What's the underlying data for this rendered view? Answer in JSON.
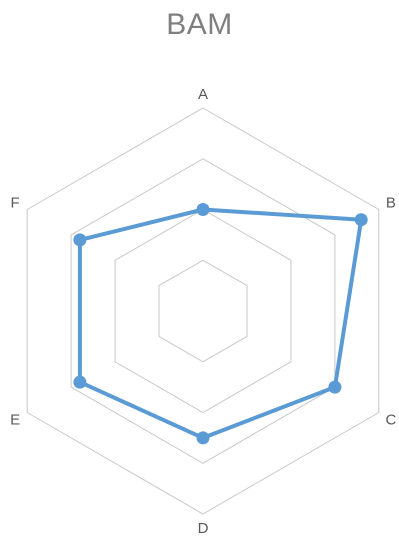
{
  "chart_data": {
    "type": "radar",
    "title": "BAM",
    "categories": [
      "A",
      "B",
      "C",
      "D",
      "E",
      "F"
    ],
    "series": [
      {
        "values": [
          3.0,
          4.6,
          4.0,
          3.5,
          3.8,
          3.8
        ],
        "color": "#5b9bd5"
      }
    ],
    "rlim": [
      1,
      5
    ],
    "rings": [
      2,
      3,
      4,
      5
    ],
    "grid": true,
    "legend": "none",
    "grid_color": "#c8c8c8"
  }
}
